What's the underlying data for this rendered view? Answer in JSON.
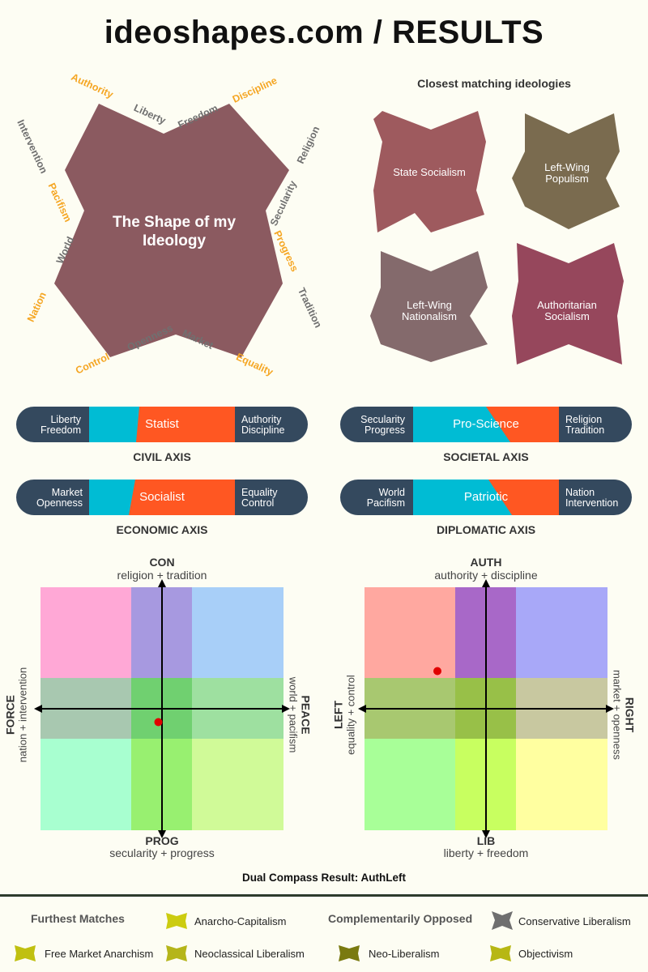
{
  "title": "ideoshapes.com / RESULTS",
  "shape": {
    "title_line1": "The Shape of my",
    "title_line2": "Ideology",
    "color": "#8b5a60",
    "labels": {
      "authority": "Authority",
      "liberty": "Liberty",
      "freedom": "Freedom",
      "discipline": "Discipline",
      "intervention": "Intervention",
      "pacifism": "Pacifism",
      "world": "World",
      "nation": "Nation",
      "religion": "Religion",
      "secularity": "Secularity",
      "progress": "Progress",
      "tradition": "Tradition",
      "control": "Control",
      "openness": "Openness",
      "market": "Market",
      "equality": "Equality"
    }
  },
  "closest": {
    "heading": "Closest matching ideologies",
    "items": [
      {
        "line1": "State Socialism",
        "line2": "",
        "color": "#9e5a5e"
      },
      {
        "line1": "Left-Wing",
        "line2": "Populism",
        "color": "#7a6b4f"
      },
      {
        "line1": "Left-Wing",
        "line2": "Nationalism",
        "color": "#846a6c"
      },
      {
        "line1": "Authoritarian",
        "line2": "Socialism",
        "color": "#96475c"
      }
    ]
  },
  "axes": {
    "civil": {
      "left1": "Liberty",
      "left2": "Freedom",
      "mid": "Statist",
      "right1": "Authority",
      "right2": "Discipline",
      "name": "CIVIL AXIS",
      "split": 0.67
    },
    "societal": {
      "left1": "Secularity",
      "left2": "Progress",
      "mid": "Pro-Science",
      "right1": "Religion",
      "right2": "Tradition",
      "name": "SOCIETAL AXIS",
      "split": 0.33
    },
    "economic": {
      "left1": "Market",
      "left2": "Openness",
      "mid": "Socialist",
      "right1": "Equality",
      "right2": "Control",
      "name": "ECONOMIC AXIS",
      "split": 0.65
    },
    "diplomatic": {
      "left1": "World",
      "left2": "Pacifism",
      "mid": "Patriotic",
      "right1": "Nation",
      "right2": "Intervention",
      "name": "DIPLOMATIC AXIS",
      "split": 0.35
    }
  },
  "compass1": {
    "top": "CON",
    "top_sub": "religion + tradition",
    "bottom": "PROG",
    "bottom_sub": "secularity + progress",
    "left": "FORCE",
    "left_sub": "nation + intervention",
    "right": "PEACE",
    "right_sub": "world + pacifism",
    "point": {
      "x": -0.03,
      "y": -0.11
    }
  },
  "compass2": {
    "top": "AUTH",
    "top_sub": "authority + discipline",
    "bottom": "LIB",
    "bottom_sub": "liberty + freedom",
    "left": "LEFT",
    "left_sub": "equality + control",
    "right": "RIGHT",
    "right_sub": "market + openness",
    "point": {
      "x": -0.4,
      "y": 0.31
    }
  },
  "compass_result": "Dual Compass Result: AuthLeft",
  "footer": {
    "furthest_heading": "Furthest Matches",
    "opposed_heading": "Complementarily Opposed",
    "furthest": [
      {
        "label": "Anarcho-Capitalism",
        "color": "#cccc10"
      },
      {
        "label": "Free Market Anarchism",
        "color": "#c0c010"
      },
      {
        "label": "Neoclassical Liberalism",
        "color": "#b5b51a"
      }
    ],
    "opposed": [
      {
        "label": "Conservative Liberalism",
        "color": "#6f6f6f"
      },
      {
        "label": "Neo-Liberalism",
        "color": "#7a7a10"
      },
      {
        "label": "Objectivism",
        "color": "#b7b714"
      }
    ]
  }
}
